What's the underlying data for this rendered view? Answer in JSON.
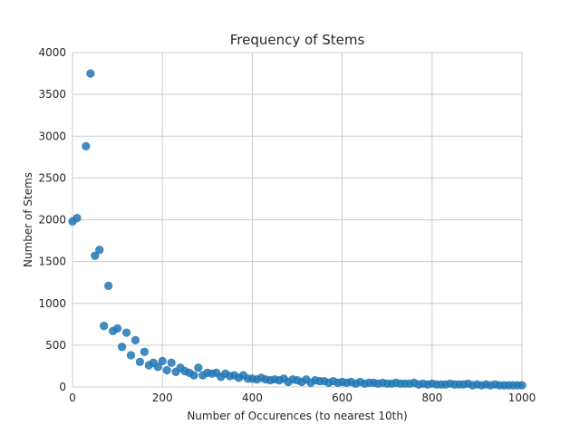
{
  "chart_data": {
    "type": "scatter",
    "title": "Frequency of Stems",
    "xlabel": "Number of Occurences (to nearest 10th)",
    "ylabel": "Number of Stems",
    "xlim": [
      0,
      1000
    ],
    "ylim": [
      0,
      4000
    ],
    "xticks": [
      0,
      200,
      400,
      600,
      800,
      1000
    ],
    "yticks": [
      0,
      500,
      1000,
      1500,
      2000,
      2500,
      3000,
      3500,
      4000
    ],
    "grid": true,
    "marker_color": "#1f77b4",
    "points": [
      [
        0,
        1980
      ],
      [
        10,
        2020
      ],
      [
        30,
        2880
      ],
      [
        40,
        3750
      ],
      [
        50,
        1570
      ],
      [
        60,
        1640
      ],
      [
        70,
        730
      ],
      [
        80,
        1210
      ],
      [
        90,
        670
      ],
      [
        100,
        700
      ],
      [
        110,
        480
      ],
      [
        120,
        650
      ],
      [
        130,
        380
      ],
      [
        140,
        560
      ],
      [
        150,
        300
      ],
      [
        160,
        420
      ],
      [
        170,
        260
      ],
      [
        180,
        290
      ],
      [
        190,
        240
      ],
      [
        200,
        310
      ],
      [
        210,
        200
      ],
      [
        220,
        290
      ],
      [
        230,
        180
      ],
      [
        240,
        230
      ],
      [
        250,
        190
      ],
      [
        260,
        170
      ],
      [
        270,
        140
      ],
      [
        280,
        230
      ],
      [
        290,
        140
      ],
      [
        300,
        170
      ],
      [
        310,
        160
      ],
      [
        320,
        170
      ],
      [
        330,
        120
      ],
      [
        340,
        160
      ],
      [
        350,
        130
      ],
      [
        360,
        140
      ],
      [
        370,
        110
      ],
      [
        380,
        140
      ],
      [
        390,
        100
      ],
      [
        400,
        100
      ],
      [
        410,
        90
      ],
      [
        420,
        110
      ],
      [
        430,
        90
      ],
      [
        440,
        80
      ],
      [
        450,
        90
      ],
      [
        460,
        80
      ],
      [
        470,
        100
      ],
      [
        480,
        60
      ],
      [
        490,
        90
      ],
      [
        500,
        80
      ],
      [
        510,
        60
      ],
      [
        520,
        90
      ],
      [
        530,
        50
      ],
      [
        540,
        80
      ],
      [
        550,
        70
      ],
      [
        560,
        70
      ],
      [
        570,
        50
      ],
      [
        580,
        70
      ],
      [
        590,
        50
      ],
      [
        600,
        60
      ],
      [
        610,
        50
      ],
      [
        620,
        60
      ],
      [
        630,
        40
      ],
      [
        640,
        60
      ],
      [
        650,
        40
      ],
      [
        660,
        50
      ],
      [
        670,
        50
      ],
      [
        680,
        40
      ],
      [
        690,
        50
      ],
      [
        700,
        40
      ],
      [
        710,
        40
      ],
      [
        720,
        50
      ],
      [
        730,
        40
      ],
      [
        740,
        40
      ],
      [
        750,
        40
      ],
      [
        760,
        50
      ],
      [
        770,
        30
      ],
      [
        780,
        40
      ],
      [
        790,
        30
      ],
      [
        800,
        40
      ],
      [
        810,
        30
      ],
      [
        820,
        30
      ],
      [
        830,
        30
      ],
      [
        840,
        40
      ],
      [
        850,
        30
      ],
      [
        860,
        30
      ],
      [
        870,
        30
      ],
      [
        880,
        40
      ],
      [
        890,
        20
      ],
      [
        900,
        30
      ],
      [
        910,
        20
      ],
      [
        920,
        30
      ],
      [
        930,
        20
      ],
      [
        940,
        30
      ],
      [
        950,
        20
      ],
      [
        960,
        20
      ],
      [
        970,
        20
      ],
      [
        980,
        20
      ],
      [
        990,
        20
      ],
      [
        1000,
        20
      ]
    ]
  }
}
